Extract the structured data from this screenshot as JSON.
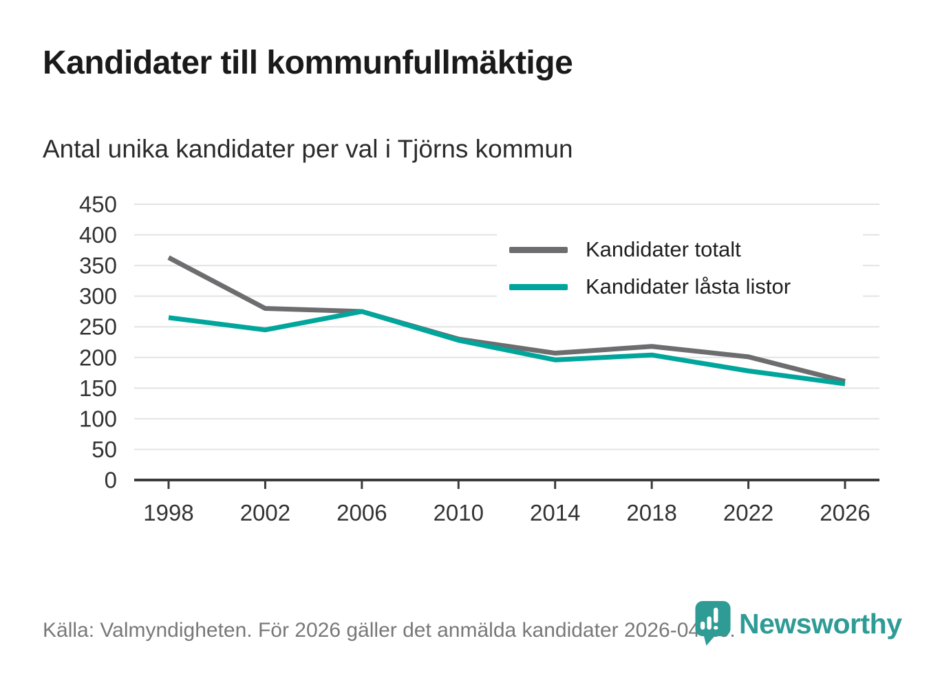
{
  "title": "Kandidater till kommunfullmäktige",
  "subtitle": "Antal unika kandidater per val i Tjörns kommun",
  "legend": {
    "items": [
      {
        "label": "Kandidater totalt",
        "color": "#6d6d70"
      },
      {
        "label": "Kandidater låsta listor",
        "color": "#00a69c"
      }
    ]
  },
  "footer": {
    "source_text": "Källa: Valmyndigheten. För 2026 gäller det anmälda kandidater 2026-04-10."
  },
  "branding": {
    "logo_text": "Newsworthy",
    "logo_icon": "newsworthy-pin-barchart-icon",
    "logo_color": "#2e9b95"
  },
  "colors": {
    "gridline": "#e3e3e3",
    "axis": "#3b3b3b",
    "tick_text": "#333333",
    "total_series": "#6d6d70",
    "locked_series": "#00a69c"
  },
  "chart_data": {
    "type": "line",
    "title": "Kandidater till kommunfullmäktige",
    "subtitle": "Antal unika kandidater per val i Tjörns kommun",
    "categories": [
      "1998",
      "2002",
      "2006",
      "2010",
      "2014",
      "2018",
      "2022",
      "2026"
    ],
    "series": [
      {
        "name": "Kandidater totalt",
        "color": "#6d6d70",
        "values": [
          363,
          280,
          275,
          230,
          207,
          218,
          201,
          161
        ]
      },
      {
        "name": "Kandidater låsta listor",
        "color": "#00a69c",
        "values": [
          265,
          245,
          275,
          228,
          196,
          204,
          178,
          157
        ]
      }
    ],
    "xlabel": "",
    "ylabel": "",
    "ylim": [
      0,
      450
    ],
    "yticks": [
      0,
      50,
      100,
      150,
      200,
      250,
      300,
      350,
      400,
      450
    ],
    "grid": "horizontal",
    "legend_position": "top-right-inside"
  }
}
